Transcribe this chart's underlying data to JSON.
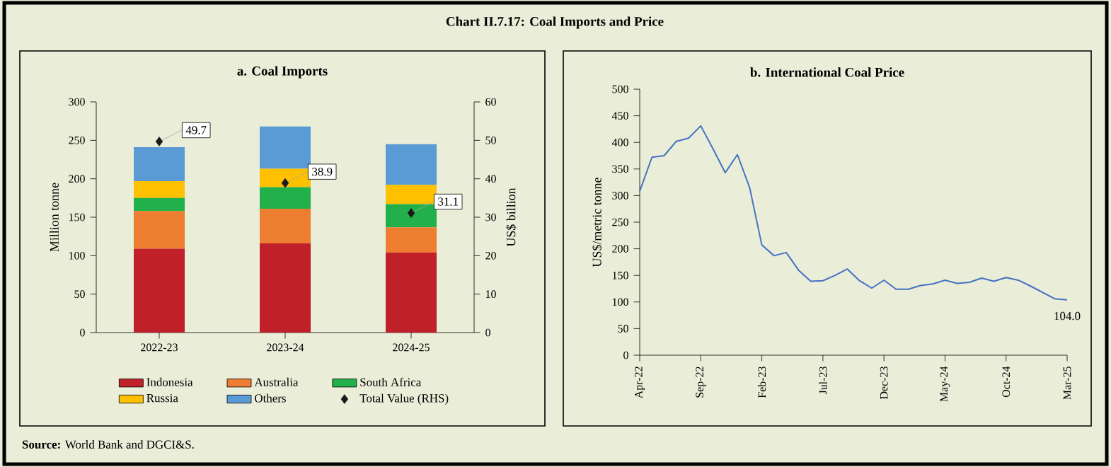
{
  "chart_data": [
    {
      "type": "bar",
      "title": "a. Coal Imports",
      "categories": [
        "2022-23",
        "2023-24",
        "2024-25"
      ],
      "ylabel": "Million tonne",
      "y2label": "US$ billion",
      "stacked": true,
      "ylim": [
        0,
        300
      ],
      "yticks": [
        0,
        50,
        100,
        150,
        200,
        250,
        300
      ],
      "y2lim": [
        0,
        60
      ],
      "y2ticks": [
        0,
        10,
        20,
        30,
        40,
        50,
        60
      ],
      "legend": "bottom",
      "annotations": [
        "Chart II.7.17: Coal Imports and Price",
        "**Source:** World Bank and DGCI&S."
      ],
      "series": [
        {
          "name": "Indonesia",
          "color": "#c0202a",
          "values": [
            109,
            116,
            104
          ]
        },
        {
          "name": "Australia",
          "color": "#ed7d31",
          "values": [
            49,
            45,
            33
          ]
        },
        {
          "name": "South Africa",
          "color": "#22b04b",
          "values": [
            17,
            28,
            30
          ]
        },
        {
          "name": "Russia",
          "color": "#ffc000",
          "values": [
            22,
            24,
            25
          ]
        },
        {
          "name": "Others",
          "color": "#5b9bd5",
          "values": [
            44,
            55,
            53
          ]
        },
        {
          "name": "Total Value (RHS)",
          "type": "scatter",
          "axis": "y2",
          "marker": "diamond",
          "color": "#1a1a1a",
          "values": [
            49.7,
            38.9,
            31.1
          ],
          "value_labels": [
            "49.7",
            "38.9",
            "31.1"
          ]
        }
      ]
    },
    {
      "type": "line",
      "title": "b. International Coal Price",
      "ylabel": "US$/metric tonne",
      "xlim": [
        "2022-04",
        "2025-03"
      ],
      "ylim": [
        0,
        500
      ],
      "yticks": [
        0,
        50,
        100,
        150,
        200,
        250,
        300,
        350,
        400,
        450,
        500
      ],
      "xticks": [
        {
          "value": "2022-04",
          "label": "Apr-22"
        },
        {
          "value": "2022-09",
          "label": "Sep-22"
        },
        {
          "value": "2023-02",
          "label": "Feb-23"
        },
        {
          "value": "2023-07",
          "label": "Jul-23"
        },
        {
          "value": "2023-12",
          "label": "Dec-23"
        },
        {
          "value": "2024-05",
          "label": "May-24"
        },
        {
          "value": "2024-10",
          "label": "Oct-24"
        },
        {
          "value": "2025-03",
          "label": "Mar-25"
        }
      ],
      "x": [
        "2022-04",
        "2022-05",
        "2022-06",
        "2022-07",
        "2022-08",
        "2022-09",
        "2022-10",
        "2022-11",
        "2022-12",
        "2023-01",
        "2023-02",
        "2023-03",
        "2023-04",
        "2023-05",
        "2023-06",
        "2023-07",
        "2023-08",
        "2023-09",
        "2023-10",
        "2023-11",
        "2023-12",
        "2024-01",
        "2024-02",
        "2024-03",
        "2024-04",
        "2024-05",
        "2024-06",
        "2024-07",
        "2024-08",
        "2024-09",
        "2024-10",
        "2024-11",
        "2024-12",
        "2025-01",
        "2025-02",
        "2025-03"
      ],
      "series": [
        {
          "color": "#4472c4",
          "values": [
            308,
            372,
            375,
            402,
            408,
            431,
            388,
            343,
            377,
            315,
            207,
            187,
            193,
            160,
            139,
            140,
            150,
            162,
            140,
            126,
            141,
            124,
            124,
            131,
            134,
            141,
            135,
            137,
            145,
            139,
            146,
            141,
            130,
            118,
            106,
            104
          ]
        }
      ],
      "annotations": [
        {
          "text": "104.0",
          "x": "2025-03",
          "y": 104
        }
      ]
    }
  ]
}
